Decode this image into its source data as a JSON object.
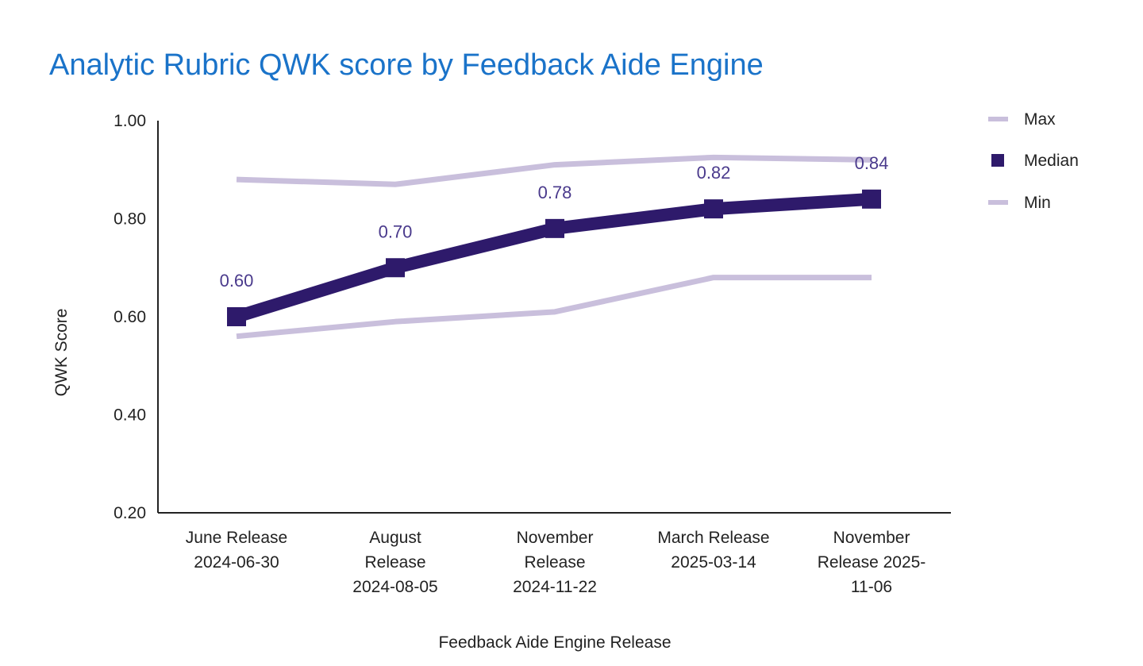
{
  "chart_data": {
    "type": "line",
    "title": "Analytic Rubric QWK score by Feedback Aide Engine",
    "xlabel": "Feedback Aide Engine Release",
    "ylabel": "QWK Score",
    "ylim": [
      0.2,
      1.0
    ],
    "yticks": [
      "1.00",
      "0.80",
      "0.60",
      "0.40",
      "0.20"
    ],
    "categories": [
      [
        "June Release",
        "2024-06-30"
      ],
      [
        "August",
        "Release",
        "2024-08-05"
      ],
      [
        "November",
        "Release",
        "2024-11-22"
      ],
      [
        "March Release",
        "2025-03-14"
      ],
      [
        "November",
        "Release 2025-",
        "11-06"
      ]
    ],
    "series": [
      {
        "name": "Max",
        "values": [
          0.88,
          0.87,
          0.91,
          0.925,
          0.92
        ],
        "color": "#c9bfdc"
      },
      {
        "name": "Median",
        "values": [
          0.6,
          0.7,
          0.78,
          0.82,
          0.84
        ],
        "labels": [
          "0.60",
          "0.70",
          "0.78",
          "0.82",
          "0.84"
        ],
        "color": "#2e1a6b"
      },
      {
        "name": "Min",
        "values": [
          0.56,
          0.59,
          0.61,
          0.68,
          0.68
        ],
        "color": "#c9bfdc"
      }
    ],
    "grid": false,
    "legend_position": "right"
  }
}
